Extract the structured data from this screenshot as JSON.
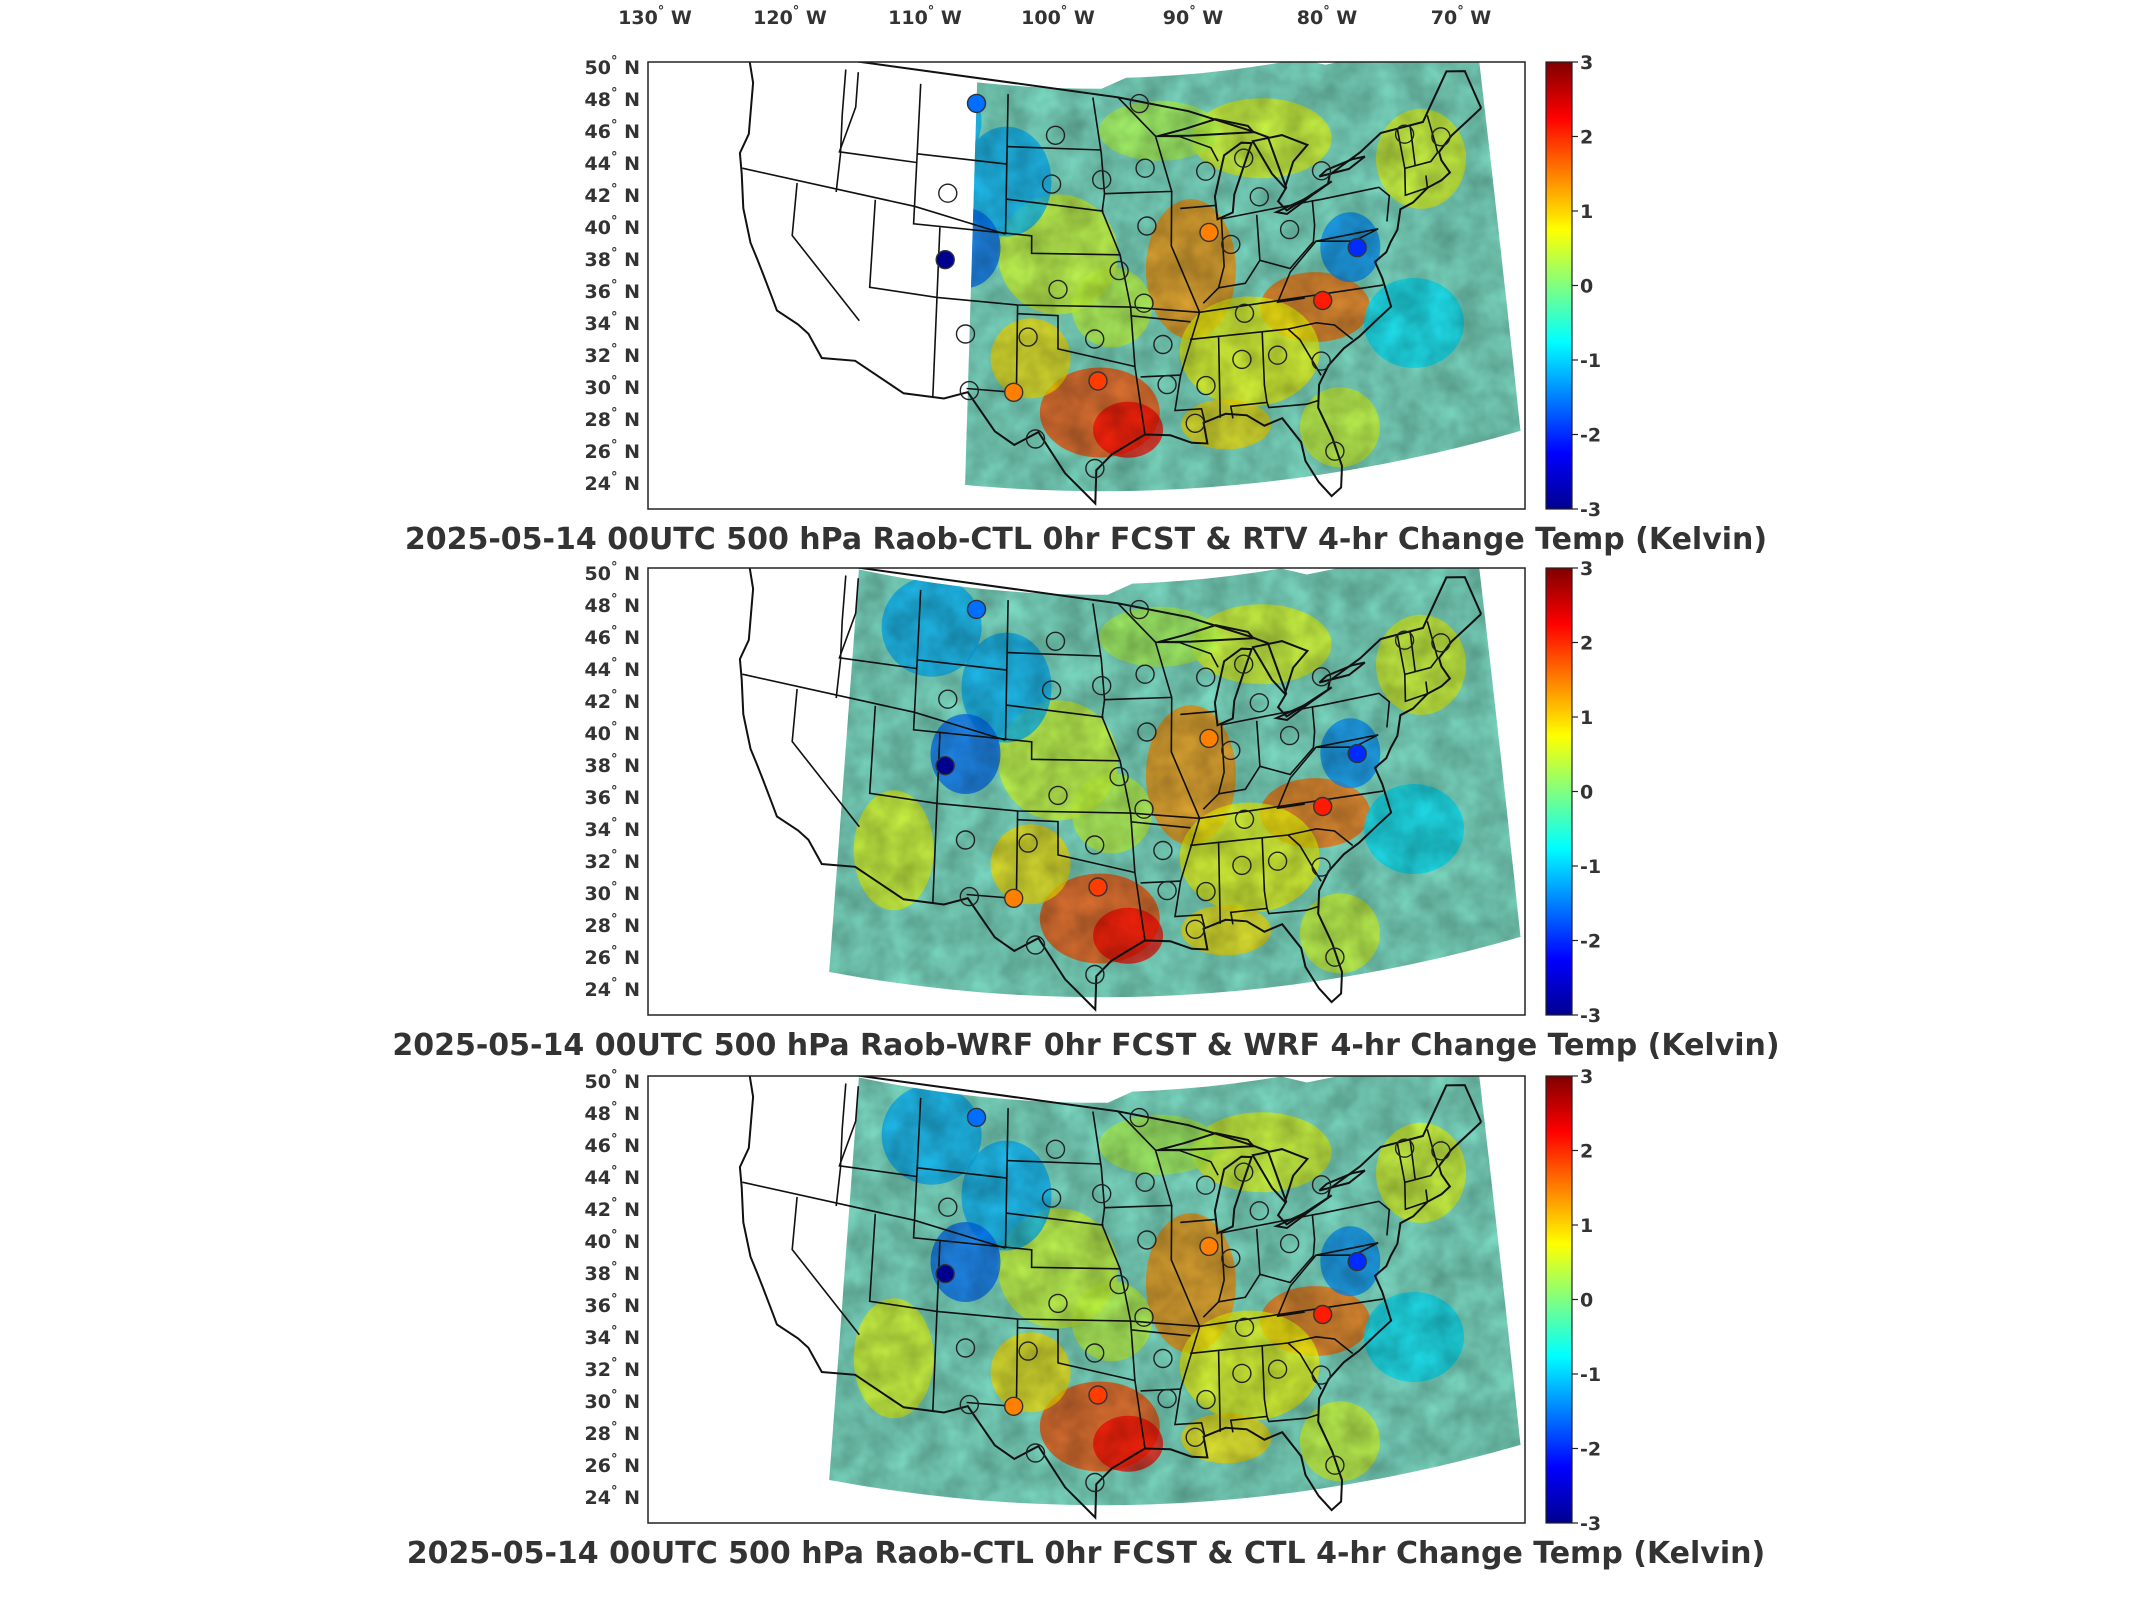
{
  "longitude_labels": [
    "130",
    "120",
    "110",
    "100",
    "90",
    "80",
    "70"
  ],
  "longitude_suffix": "W",
  "latitude_labels": [
    "50",
    "48",
    "46",
    "44",
    "42",
    "40",
    "38",
    "36",
    "34",
    "32",
    "30",
    "28",
    "26",
    "24"
  ],
  "latitude_suffix": "N",
  "degree_symbol": "°",
  "colorbar": {
    "ticks": [
      "3",
      "2",
      "1",
      "0",
      "-1",
      "-2",
      "-3"
    ],
    "min": -3,
    "max": 3,
    "colormap": "jet",
    "colors": [
      "#00008f",
      "#0000ff",
      "#0080ff",
      "#00ffff",
      "#80ff80",
      "#ffff00",
      "#ff8000",
      "#ff0000",
      "#800000"
    ]
  },
  "panels": [
    {
      "title": "2025-05-14 00UTC 500 hPa Raob-CTL 0hr FCST & RTV 4-hr Change Temp (Kelvin)",
      "field_extent_west_lon": -106.5,
      "stations": [
        {
          "lon": -106.5,
          "lat": 48.3,
          "value": -1.6
        },
        {
          "lon": -108.5,
          "lat": 43.0,
          "value": -0.2
        },
        {
          "lon": -108.5,
          "lat": 39.2,
          "value": -3.0
        },
        {
          "lon": -106.8,
          "lat": 35.1,
          "value": 0.2
        },
        {
          "lon": -106.4,
          "lat": 31.9,
          "value": 0.4
        },
        {
          "lon": -103.2,
          "lat": 32.0,
          "value": 1.5
        },
        {
          "lon": -102.2,
          "lat": 35.2,
          "value": 0.5
        },
        {
          "lon": -101.6,
          "lat": 29.4,
          "value": 0.3
        },
        {
          "lon": -100.2,
          "lat": 46.8,
          "value": 0.0
        },
        {
          "lon": -100.5,
          "lat": 44.0,
          "value": 0.0
        },
        {
          "lon": -100.0,
          "lat": 38.0,
          "value": -0.4
        },
        {
          "lon": -97.3,
          "lat": 35.2,
          "value": 0.6
        },
        {
          "lon": -97.1,
          "lat": 32.8,
          "value": 1.9
        },
        {
          "lon": -97.4,
          "lat": 27.8,
          "value": 0.8
        },
        {
          "lon": -96.6,
          "lat": 44.3,
          "value": 0.2
        },
        {
          "lon": -95.4,
          "lat": 39.1,
          "value": 0.3
        },
        {
          "lon": -93.2,
          "lat": 41.6,
          "value": 0.2
        },
        {
          "lon": -93.2,
          "lat": 44.9,
          "value": 0.0
        },
        {
          "lon": -93.5,
          "lat": 48.6,
          "value": 0.2
        },
        {
          "lon": -92.3,
          "lat": 34.8,
          "value": 0.3
        },
        {
          "lon": -93.6,
          "lat": 37.2,
          "value": 0.2
        },
        {
          "lon": -92.1,
          "lat": 32.5,
          "value": 0.6
        },
        {
          "lon": -90.2,
          "lat": 30.2,
          "value": 0.4
        },
        {
          "lon": -88.5,
          "lat": 41.0,
          "value": 1.5
        },
        {
          "lon": -88.5,
          "lat": 44.5,
          "value": 1.0
        },
        {
          "lon": -89.3,
          "lat": 32.3,
          "value": 0.4
        },
        {
          "lon": -86.9,
          "lat": 40.2,
          "value": 0.9
        },
        {
          "lon": -86.6,
          "lat": 33.6,
          "value": 0.3
        },
        {
          "lon": -86.2,
          "lat": 36.2,
          "value": 0.2
        },
        {
          "lon": -85.5,
          "lat": 45.0,
          "value": 0.5
        },
        {
          "lon": -84.5,
          "lat": 42.7,
          "value": -0.3
        },
        {
          "lon": -84.0,
          "lat": 33.6,
          "value": 0.4
        },
        {
          "lon": -82.4,
          "lat": 40.6,
          "value": 0.3
        },
        {
          "lon": -80.4,
          "lat": 36.3,
          "value": 2.1
        },
        {
          "lon": -80.5,
          "lat": 27.7,
          "value": 0.3
        },
        {
          "lon": -80.9,
          "lat": 32.9,
          "value": 0.3
        },
        {
          "lon": -79.6,
          "lat": 43.6,
          "value": 0.2
        },
        {
          "lon": -77.5,
          "lat": 38.9,
          "value": -2.0
        },
        {
          "lon": -73.0,
          "lat": 44.6,
          "value": 0.8
        },
        {
          "lon": -70.3,
          "lat": 43.9,
          "value": 0.2
        }
      ]
    },
    {
      "title": "2025-05-14 00UTC 500 hPa Raob-WRF 0hr FCST & WRF 4-hr Change Temp (Kelvin)",
      "field_extent_west_lon": -116.0,
      "stations": [
        {
          "lon": -106.5,
          "lat": 48.3,
          "value": -1.6
        },
        {
          "lon": -108.5,
          "lat": 43.0,
          "value": -0.2
        },
        {
          "lon": -108.5,
          "lat": 39.2,
          "value": -3.0
        },
        {
          "lon": -106.8,
          "lat": 35.1,
          "value": 0.2
        },
        {
          "lon": -106.4,
          "lat": 31.9,
          "value": 0.4
        },
        {
          "lon": -103.2,
          "lat": 32.0,
          "value": 1.5
        },
        {
          "lon": -102.2,
          "lat": 35.2,
          "value": 0.5
        },
        {
          "lon": -101.6,
          "lat": 29.4,
          "value": 0.3
        },
        {
          "lon": -100.2,
          "lat": 46.8,
          "value": 0.0
        },
        {
          "lon": -100.5,
          "lat": 44.0,
          "value": 0.0
        },
        {
          "lon": -100.0,
          "lat": 38.0,
          "value": -0.4
        },
        {
          "lon": -97.3,
          "lat": 35.2,
          "value": 0.6
        },
        {
          "lon": -97.1,
          "lat": 32.8,
          "value": 1.9
        },
        {
          "lon": -97.4,
          "lat": 27.8,
          "value": 0.8
        },
        {
          "lon": -96.6,
          "lat": 44.3,
          "value": 0.2
        },
        {
          "lon": -95.4,
          "lat": 39.1,
          "value": 0.3
        },
        {
          "lon": -93.2,
          "lat": 41.6,
          "value": 0.2
        },
        {
          "lon": -93.2,
          "lat": 44.9,
          "value": 0.0
        },
        {
          "lon": -93.5,
          "lat": 48.6,
          "value": 0.2
        },
        {
          "lon": -92.3,
          "lat": 34.8,
          "value": 0.3
        },
        {
          "lon": -93.6,
          "lat": 37.2,
          "value": 0.2
        },
        {
          "lon": -92.1,
          "lat": 32.5,
          "value": 0.6
        },
        {
          "lon": -90.2,
          "lat": 30.2,
          "value": 0.4
        },
        {
          "lon": -88.5,
          "lat": 41.0,
          "value": 1.5
        },
        {
          "lon": -88.5,
          "lat": 44.5,
          "value": 1.0
        },
        {
          "lon": -89.3,
          "lat": 32.3,
          "value": 0.4
        },
        {
          "lon": -86.9,
          "lat": 40.2,
          "value": 0.9
        },
        {
          "lon": -86.6,
          "lat": 33.6,
          "value": 0.3
        },
        {
          "lon": -86.2,
          "lat": 36.2,
          "value": 0.2
        },
        {
          "lon": -85.5,
          "lat": 45.0,
          "value": 0.5
        },
        {
          "lon": -84.5,
          "lat": 42.7,
          "value": -0.3
        },
        {
          "lon": -84.0,
          "lat": 33.6,
          "value": 0.4
        },
        {
          "lon": -82.4,
          "lat": 40.6,
          "value": 0.3
        },
        {
          "lon": -80.4,
          "lat": 36.3,
          "value": 2.1
        },
        {
          "lon": -80.5,
          "lat": 27.7,
          "value": 0.3
        },
        {
          "lon": -80.9,
          "lat": 32.9,
          "value": 0.3
        },
        {
          "lon": -79.6,
          "lat": 43.6,
          "value": 0.2
        },
        {
          "lon": -77.5,
          "lat": 38.9,
          "value": -2.0
        },
        {
          "lon": -73.0,
          "lat": 44.6,
          "value": 0.8
        },
        {
          "lon": -70.3,
          "lat": 43.9,
          "value": 0.2
        }
      ]
    },
    {
      "title": "2025-05-14 00UTC 500 hPa Raob-CTL 0hr FCST & CTL 4-hr Change Temp (Kelvin)",
      "field_extent_west_lon": -116.0,
      "stations": [
        {
          "lon": -106.5,
          "lat": 48.3,
          "value": -1.6
        },
        {
          "lon": -108.5,
          "lat": 43.0,
          "value": -0.2
        },
        {
          "lon": -108.5,
          "lat": 39.2,
          "value": -3.0
        },
        {
          "lon": -106.8,
          "lat": 35.1,
          "value": 0.2
        },
        {
          "lon": -106.4,
          "lat": 31.9,
          "value": 0.4
        },
        {
          "lon": -103.2,
          "lat": 32.0,
          "value": 1.5
        },
        {
          "lon": -102.2,
          "lat": 35.2,
          "value": 0.5
        },
        {
          "lon": -101.6,
          "lat": 29.4,
          "value": 0.3
        },
        {
          "lon": -100.2,
          "lat": 46.8,
          "value": 0.0
        },
        {
          "lon": -100.5,
          "lat": 44.0,
          "value": 0.0
        },
        {
          "lon": -100.0,
          "lat": 38.0,
          "value": -0.4
        },
        {
          "lon": -97.3,
          "lat": 35.2,
          "value": 0.6
        },
        {
          "lon": -97.1,
          "lat": 32.8,
          "value": 1.9
        },
        {
          "lon": -97.4,
          "lat": 27.8,
          "value": 0.8
        },
        {
          "lon": -96.6,
          "lat": 44.3,
          "value": 0.2
        },
        {
          "lon": -95.4,
          "lat": 39.1,
          "value": 0.3
        },
        {
          "lon": -93.2,
          "lat": 41.6,
          "value": 0.2
        },
        {
          "lon": -93.2,
          "lat": 44.9,
          "value": 0.0
        },
        {
          "lon": -93.5,
          "lat": 48.6,
          "value": 0.2
        },
        {
          "lon": -92.3,
          "lat": 34.8,
          "value": 0.3
        },
        {
          "lon": -93.6,
          "lat": 37.2,
          "value": 0.2
        },
        {
          "lon": -92.1,
          "lat": 32.5,
          "value": 0.6
        },
        {
          "lon": -90.2,
          "lat": 30.2,
          "value": 0.4
        },
        {
          "lon": -88.5,
          "lat": 41.0,
          "value": 1.5
        },
        {
          "lon": -88.5,
          "lat": 44.5,
          "value": 1.0
        },
        {
          "lon": -89.3,
          "lat": 32.3,
          "value": 0.4
        },
        {
          "lon": -86.9,
          "lat": 40.2,
          "value": 0.9
        },
        {
          "lon": -86.6,
          "lat": 33.6,
          "value": 0.3
        },
        {
          "lon": -86.2,
          "lat": 36.2,
          "value": 0.2
        },
        {
          "lon": -85.5,
          "lat": 45.0,
          "value": 0.5
        },
        {
          "lon": -84.5,
          "lat": 42.7,
          "value": -0.3
        },
        {
          "lon": -84.0,
          "lat": 33.6,
          "value": 0.4
        },
        {
          "lon": -82.4,
          "lat": 40.6,
          "value": 0.3
        },
        {
          "lon": -80.4,
          "lat": 36.3,
          "value": 2.1
        },
        {
          "lon": -80.5,
          "lat": 27.7,
          "value": 0.3
        },
        {
          "lon": -80.9,
          "lat": 32.9,
          "value": 0.3
        },
        {
          "lon": -79.6,
          "lat": 43.6,
          "value": 0.2
        },
        {
          "lon": -77.5,
          "lat": 38.9,
          "value": -2.0
        },
        {
          "lon": -73.0,
          "lat": 44.6,
          "value": 0.8
        },
        {
          "lon": -70.3,
          "lat": 43.9,
          "value": 0.2
        }
      ]
    }
  ]
}
